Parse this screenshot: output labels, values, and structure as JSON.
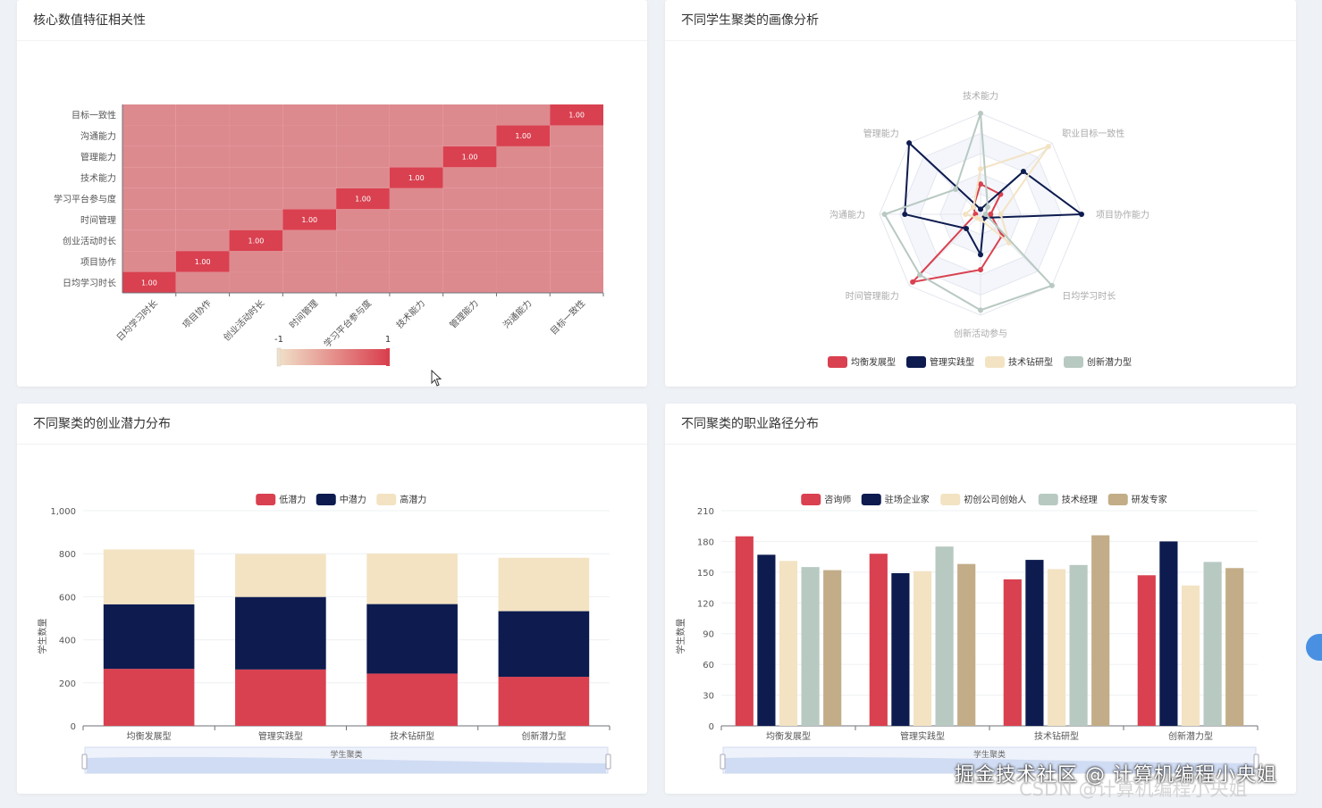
{
  "watermark": "掘金技术社区 @ 计算机编程小央姐",
  "watermark_faint": "CSDN @计算机编程小央姐",
  "panels": {
    "heatmap_title": "核心数值特征相关性",
    "radar_title": "不同学生聚类的画像分析",
    "stacked_title": "不同聚类的创业潜力分布",
    "grouped_title": "不同聚类的职业路径分布"
  },
  "chart_data": [
    {
      "type": "heatmap",
      "x_categories": [
        "日均学习时长",
        "项目协作",
        "创业活动时长",
        "时间管理",
        "学习平台参与度",
        "技术能力",
        "管理能力",
        "沟通能力",
        "目标一致性"
      ],
      "y_categories": [
        "日均学习时长",
        "项目协作",
        "创业活动时长",
        "时间管理",
        "学习平台参与度",
        "技术能力",
        "管理能力",
        "沟通能力",
        "目标一致性"
      ],
      "diagonal_label": "1.00",
      "value_range": [
        -1,
        1
      ],
      "visual_map": {
        "min_label": "-1",
        "max_label": "1"
      },
      "colors": {
        "low": "#f0e0c8",
        "high": "#d9404f",
        "cell": "#dd8a8e",
        "diag": "#d94150"
      }
    },
    {
      "type": "radar",
      "indicators": [
        "技术能力",
        "职业目标一致性",
        "项目协作能力",
        "日均学习时长",
        "创新活动参与",
        "时间管理能力",
        "沟通能力",
        "管理能力"
      ],
      "max": 1,
      "series": [
        {
          "name": "均衡发展型",
          "color": "#d94150",
          "values": [
            0.3,
            0.28,
            0.1,
            0.3,
            0.55,
            0.95,
            0.05,
            0.1
          ]
        },
        {
          "name": "管理实践型",
          "color": "#0d1b4f",
          "values": [
            0.05,
            0.6,
            1.0,
            0.05,
            0.4,
            0.2,
            0.75,
            1.0
          ]
        },
        {
          "name": "技术钻研型",
          "color": "#f3e3c3",
          "values": [
            0.45,
            0.95,
            0.2,
            0.4,
            0.05,
            0.05,
            0.15,
            0.1
          ]
        },
        {
          "name": "创新潜力型",
          "color": "#b8c9c2",
          "values": [
            1.0,
            0.1,
            0.05,
            1.0,
            0.95,
            0.85,
            0.95,
            0.35
          ]
        }
      ]
    },
    {
      "type": "bar",
      "stacked": true,
      "categories": [
        "均衡发展型",
        "管理实践型",
        "技术钻研型",
        "创新潜力型"
      ],
      "series": [
        {
          "name": "低潜力",
          "color": "#d94150",
          "values": [
            265,
            262,
            243,
            228
          ]
        },
        {
          "name": "中潜力",
          "color": "#0d1b4f",
          "values": [
            300,
            337,
            323,
            305
          ]
        },
        {
          "name": "高潜力",
          "color": "#f3e3c3",
          "values": [
            255,
            200,
            235,
            248
          ]
        }
      ],
      "ylabel": "学生数量",
      "xlabel": "学生聚类",
      "yticks": [
        "0",
        "200",
        "400",
        "600",
        "800",
        "1,000"
      ],
      "ylim": [
        0,
        1000
      ]
    },
    {
      "type": "bar",
      "stacked": false,
      "categories": [
        "均衡发展型",
        "管理实践型",
        "技术钻研型",
        "创新潜力型"
      ],
      "series": [
        {
          "name": "咨询师",
          "color": "#d94150",
          "values": [
            185,
            168,
            143,
            147
          ]
        },
        {
          "name": "驻场企业家",
          "color": "#0d1b4f",
          "values": [
            167,
            149,
            162,
            180
          ]
        },
        {
          "name": "初创公司创始人",
          "color": "#f3e3c3",
          "values": [
            161,
            151,
            153,
            137
          ]
        },
        {
          "name": "技术经理",
          "color": "#b8c9c2",
          "values": [
            155,
            175,
            157,
            160
          ]
        },
        {
          "name": "研发专家",
          "color": "#c2ad88",
          "values": [
            152,
            158,
            186,
            154
          ]
        }
      ],
      "ylabel": "学生数量",
      "xlabel": "学生聚类",
      "yticks": [
        "0",
        "30",
        "60",
        "90",
        "120",
        "150",
        "180",
        "210"
      ],
      "ylim": [
        0,
        210
      ]
    }
  ]
}
